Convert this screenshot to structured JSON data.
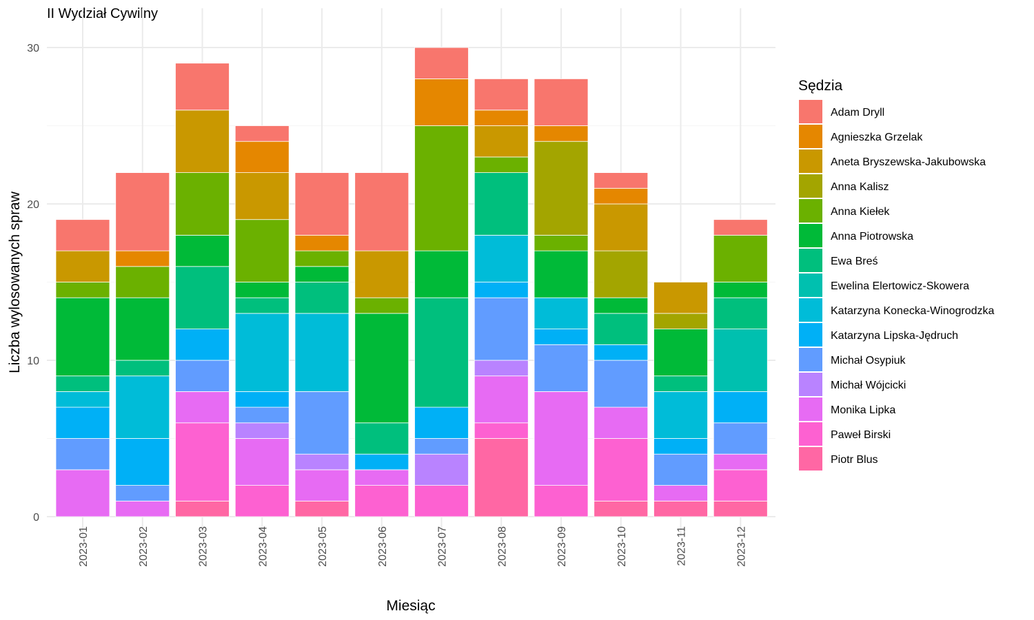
{
  "chart_data": {
    "type": "bar",
    "stacked": true,
    "title": "II Wydział Cywilny",
    "xlabel": "Miesiąc",
    "ylabel": "Liczba wylosowanych spraw",
    "ylim": [
      0,
      32
    ],
    "y_ticks": [
      0,
      10,
      20,
      30
    ],
    "grid": true,
    "legend_title": "Sędzia",
    "legend_position": "right",
    "categories": [
      "2023-01",
      "2023-02",
      "2023-03",
      "2023-04",
      "2023-05",
      "2023-06",
      "2023-07",
      "2023-08",
      "2023-09",
      "2023-10",
      "2023-11",
      "2023-12"
    ],
    "series": [
      {
        "name": "Adam Dryll",
        "color": "#F8766D",
        "values": [
          2,
          5,
          3,
          1,
          4,
          5,
          2,
          2,
          3,
          1,
          0,
          1
        ]
      },
      {
        "name": "Agnieszka Grzelak",
        "color": "#E58700",
        "values": [
          0,
          1,
          0,
          2,
          1,
          0,
          3,
          1,
          1,
          1,
          0,
          0
        ]
      },
      {
        "name": "Aneta Bryszewska-Jakubowska",
        "color": "#C99800",
        "values": [
          2,
          0,
          4,
          3,
          0,
          3,
          0,
          2,
          0,
          3,
          2,
          0
        ]
      },
      {
        "name": "Anna Kalisz",
        "color": "#A3A500",
        "values": [
          0,
          0,
          0,
          0,
          0,
          0,
          0,
          0,
          6,
          3,
          1,
          0
        ]
      },
      {
        "name": "Anna Kiełek",
        "color": "#6BB100",
        "values": [
          1,
          2,
          4,
          4,
          1,
          1,
          8,
          1,
          1,
          0,
          0,
          3
        ]
      },
      {
        "name": "Anna Piotrowska",
        "color": "#00BA38",
        "values": [
          5,
          4,
          2,
          1,
          1,
          7,
          3,
          0,
          3,
          1,
          3,
          1
        ]
      },
      {
        "name": "Ewa Breś",
        "color": "#00BF7D",
        "values": [
          1,
          1,
          4,
          1,
          2,
          2,
          7,
          4,
          0,
          2,
          1,
          2
        ]
      },
      {
        "name": "Ewelina Elertowicz-Skowera",
        "color": "#00C0AF",
        "values": [
          0,
          0,
          0,
          0,
          0,
          0,
          0,
          0,
          0,
          0,
          0,
          4
        ]
      },
      {
        "name": "Katarzyna Konecka-Winogrodzka",
        "color": "#00BCD8",
        "values": [
          1,
          4,
          0,
          5,
          5,
          0,
          0,
          3,
          2,
          0,
          3,
          0
        ]
      },
      {
        "name": "Katarzyna Lipska-Jędruch",
        "color": "#00B0F6",
        "values": [
          2,
          3,
          2,
          1,
          0,
          1,
          2,
          1,
          1,
          1,
          1,
          2
        ]
      },
      {
        "name": "Michał Osypiuk",
        "color": "#619CFF",
        "values": [
          2,
          1,
          2,
          1,
          4,
          0,
          1,
          4,
          3,
          3,
          2,
          2
        ]
      },
      {
        "name": "Michał Wójcicki",
        "color": "#B983FF",
        "values": [
          0,
          0,
          0,
          1,
          1,
          0,
          2,
          1,
          0,
          0,
          0,
          0
        ]
      },
      {
        "name": "Monika Lipka",
        "color": "#E76BF3",
        "values": [
          3,
          1,
          2,
          3,
          2,
          1,
          0,
          3,
          6,
          2,
          1,
          1
        ]
      },
      {
        "name": "Paweł Birski",
        "color": "#FD61D1",
        "values": [
          0,
          0,
          5,
          2,
          0,
          2,
          2,
          1,
          2,
          4,
          0,
          2
        ]
      },
      {
        "name": "Piotr Blus",
        "color": "#FF67A4",
        "values": [
          0,
          0,
          1,
          0,
          1,
          0,
          0,
          5,
          0,
          1,
          1,
          1
        ]
      }
    ]
  }
}
